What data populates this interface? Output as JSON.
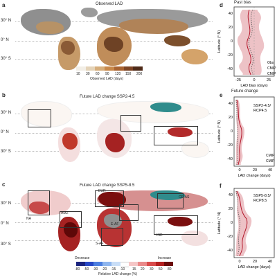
{
  "panels": {
    "a": {
      "letter": "a",
      "title": "Observed LAD",
      "lat_labels": [
        "30° N",
        "0° N",
        "30° S"
      ],
      "colorbar_ticks": [
        "10",
        "30",
        "60",
        "90",
        "120",
        "150",
        "200"
      ],
      "colorbar_label": "Observed LAD (days)"
    },
    "b": {
      "letter": "b",
      "title": "Future LAD change   SSP2-4.5",
      "lat_labels": [
        "30° N",
        "0° N",
        "30° S"
      ]
    },
    "c": {
      "letter": "c",
      "title": "Future LAD change   SSP5-8.5",
      "lat_labels": [
        "30° N",
        "0° N",
        "30° S"
      ],
      "regions": [
        "EUR",
        "CE-AS",
        "NA",
        "AMZ",
        "E-AF",
        "S-AF",
        "IND"
      ],
      "colorbar_ticks": [
        "-80",
        "-50",
        "-30",
        "-20",
        "-15",
        "-10",
        "15",
        "20",
        "30",
        "50",
        "80"
      ],
      "colorbar_ends": [
        "Decrease",
        "Increase"
      ],
      "colorbar_label": "Relative LAD change (%)"
    },
    "d": {
      "letter": "d",
      "title": "Past bias",
      "ylabel": "Latitude (° N)",
      "xlabel": "LAD bias (days)",
      "xticks": [
        "-25",
        "0",
        "25"
      ],
      "yticks": [
        "40",
        "20",
        "0",
        "-20",
        "-40"
      ],
      "legend": [
        "Obs",
        "CMIP",
        "CMIP"
      ]
    },
    "e": {
      "letter": "e",
      "title": "Future change",
      "ylabel": "Latitude (° N)",
      "xlabel": "LAD change (days)",
      "xticks": [
        "0",
        "20",
        "40"
      ],
      "yticks": [
        "40",
        "20",
        "0",
        "-20",
        "-40"
      ],
      "annotation": [
        "SSP2-4.5/",
        "RCP4.5"
      ],
      "legend": [
        "CMIP",
        "CMIP"
      ]
    },
    "f": {
      "letter": "f",
      "ylabel": "Latitude (° N)",
      "xlabel": "LAD change (days)",
      "xticks": [
        "0",
        "20",
        "40"
      ],
      "yticks": [
        "40",
        "20",
        "0",
        "-20",
        "-40"
      ],
      "annotation": [
        "SSP5-8.5/",
        "RCP8.5"
      ]
    }
  },
  "colors": {
    "obs_scale": [
      "#f2eee6",
      "#e4d3b8",
      "#d6ae7c",
      "#c8884a",
      "#a96331",
      "#7d4424",
      "#4e2a18"
    ],
    "change_scale": [
      "#1a237e",
      "#2747c5",
      "#4d7fe0",
      "#8fb6ee",
      "#c9def7",
      "#ffffff",
      "#f5c6c6",
      "#e98a8a",
      "#d84b4b",
      "#b41f1f",
      "#6b0a0a"
    ],
    "line_red": "#b2182b",
    "band_red": "#e9b3b8",
    "line_grey": "#555555",
    "teal": "#2f8c8c"
  }
}
